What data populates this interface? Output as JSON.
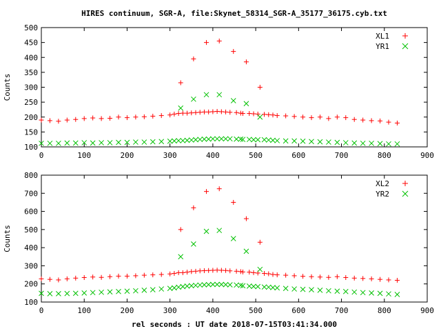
{
  "title": "HIRES continuum, SGR-A, file:Skynet_58314_SGR-A_35177_36175.cyb.txt",
  "xlabel": "rel seconds : UT date 2018-07-15T03:41:34.000",
  "colors": {
    "L": "#ff0000",
    "R": "#00c000",
    "axis": "#000000"
  },
  "chart_data": [
    {
      "type": "scatter",
      "ylabel": "Counts",
      "xlim": [
        0,
        900
      ],
      "ylim": [
        100,
        500
      ],
      "xticks": [
        "0",
        "100",
        "200",
        "300",
        "400",
        "500",
        "600",
        "700",
        "800",
        "900"
      ],
      "yticks": [
        "100",
        "150",
        "200",
        "250",
        "300",
        "350",
        "400",
        "450",
        "500"
      ],
      "legend_position": "top-right",
      "series": [
        {
          "name": "XL1",
          "marker": "plus",
          "color": "#ff0000",
          "x": [
            0,
            20,
            40,
            60,
            80,
            100,
            120,
            140,
            160,
            180,
            200,
            220,
            240,
            260,
            280,
            300,
            310,
            320,
            325,
            330,
            340,
            350,
            355,
            360,
            370,
            380,
            385,
            390,
            400,
            410,
            415,
            420,
            430,
            440,
            448,
            455,
            465,
            470,
            478,
            485,
            495,
            505,
            510,
            520,
            530,
            540,
            550,
            570,
            590,
            610,
            630,
            650,
            670,
            690,
            710,
            730,
            750,
            770,
            790,
            810,
            830
          ],
          "y": [
            190,
            188,
            186,
            190,
            192,
            195,
            197,
            195,
            196,
            200,
            198,
            200,
            201,
            203,
            205,
            207,
            210,
            212,
            315,
            213,
            213,
            214,
            395,
            215,
            216,
            217,
            450,
            217,
            218,
            219,
            455,
            218,
            217,
            216,
            420,
            215,
            213,
            212,
            385,
            212,
            211,
            210,
            300,
            209,
            208,
            207,
            205,
            204,
            202,
            200,
            198,
            200,
            195,
            200,
            198,
            192,
            190,
            188,
            187,
            183,
            180
          ]
        },
        {
          "name": "YR1",
          "marker": "cross",
          "color": "#00c000",
          "x": [
            0,
            20,
            40,
            60,
            80,
            100,
            120,
            140,
            160,
            180,
            200,
            220,
            240,
            260,
            280,
            300,
            310,
            320,
            325,
            330,
            340,
            350,
            355,
            360,
            370,
            380,
            385,
            390,
            400,
            410,
            415,
            420,
            430,
            440,
            448,
            455,
            465,
            470,
            478,
            485,
            495,
            505,
            510,
            520,
            530,
            540,
            550,
            570,
            590,
            610,
            630,
            650,
            670,
            690,
            710,
            730,
            750,
            770,
            790,
            810,
            830
          ],
          "y": [
            112,
            112,
            112,
            113,
            113,
            114,
            113,
            114,
            114,
            115,
            115,
            116,
            116,
            117,
            118,
            119,
            120,
            121,
            230,
            121,
            122,
            123,
            260,
            124,
            125,
            126,
            275,
            126,
            127,
            127,
            275,
            127,
            127,
            127,
            255,
            126,
            126,
            125,
            245,
            125,
            124,
            124,
            200,
            124,
            123,
            122,
            121,
            120,
            120,
            119,
            118,
            117,
            116,
            115,
            114,
            113,
            112,
            112,
            111,
            110,
            110
          ]
        }
      ]
    },
    {
      "type": "scatter",
      "ylabel": "Counts",
      "xlim": [
        0,
        900
      ],
      "ylim": [
        100,
        800
      ],
      "xticks": [
        "0",
        "100",
        "200",
        "300",
        "400",
        "500",
        "600",
        "700",
        "800",
        "900"
      ],
      "yticks": [
        "100",
        "200",
        "300",
        "400",
        "500",
        "600",
        "700",
        "800"
      ],
      "legend_position": "top-right",
      "series": [
        {
          "name": "XL2",
          "marker": "plus",
          "color": "#ff0000",
          "x": [
            0,
            20,
            40,
            60,
            80,
            100,
            120,
            140,
            160,
            180,
            200,
            220,
            240,
            260,
            280,
            300,
            310,
            320,
            325,
            330,
            340,
            350,
            355,
            360,
            370,
            380,
            385,
            390,
            400,
            410,
            415,
            420,
            430,
            440,
            448,
            455,
            465,
            470,
            478,
            485,
            495,
            505,
            510,
            520,
            530,
            540,
            550,
            570,
            590,
            610,
            630,
            650,
            670,
            690,
            710,
            730,
            750,
            770,
            790,
            810,
            830
          ],
          "y": [
            228,
            225,
            222,
            228,
            232,
            235,
            238,
            236,
            240,
            243,
            243,
            245,
            248,
            250,
            252,
            255,
            258,
            262,
            500,
            262,
            265,
            268,
            620,
            270,
            272,
            273,
            710,
            274,
            275,
            276,
            725,
            275,
            274,
            272,
            650,
            270,
            268,
            266,
            560,
            265,
            262,
            260,
            430,
            258,
            256,
            252,
            250,
            248,
            245,
            242,
            240,
            238,
            236,
            240,
            235,
            232,
            230,
            228,
            225,
            222,
            220
          ]
        },
        {
          "name": "YR2",
          "marker": "cross",
          "color": "#00c000",
          "x": [
            0,
            20,
            40,
            60,
            80,
            100,
            120,
            140,
            160,
            180,
            200,
            220,
            240,
            260,
            280,
            300,
            310,
            320,
            325,
            330,
            340,
            350,
            355,
            360,
            370,
            380,
            385,
            390,
            400,
            410,
            415,
            420,
            430,
            440,
            448,
            455,
            465,
            470,
            478,
            485,
            495,
            505,
            510,
            520,
            530,
            540,
            550,
            570,
            590,
            610,
            630,
            650,
            670,
            690,
            710,
            730,
            750,
            770,
            790,
            810,
            830
          ],
          "y": [
            148,
            146,
            146,
            147,
            148,
            150,
            152,
            154,
            156,
            158,
            160,
            162,
            165,
            168,
            172,
            175,
            178,
            182,
            350,
            185,
            188,
            190,
            420,
            192,
            194,
            195,
            490,
            196,
            197,
            197,
            495,
            197,
            196,
            195,
            450,
            194,
            192,
            190,
            380,
            188,
            186,
            185,
            280,
            183,
            182,
            180,
            178,
            175,
            172,
            170,
            168,
            165,
            162,
            160,
            158,
            155,
            152,
            150,
            148,
            145,
            142
          ]
        }
      ]
    }
  ]
}
